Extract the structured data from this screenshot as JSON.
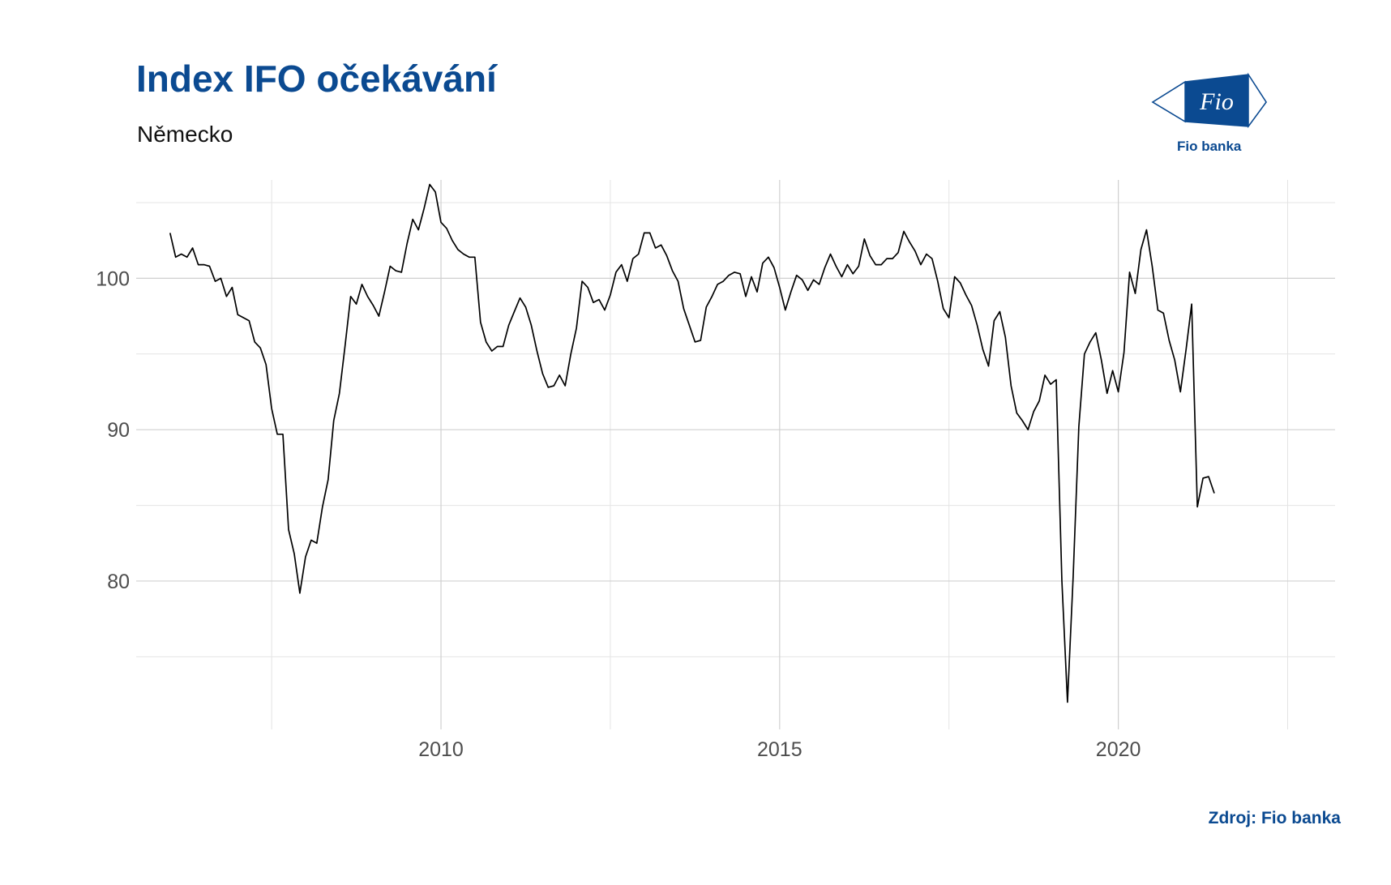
{
  "header": {
    "title": "Index IFO očekávání",
    "subtitle": "Německo"
  },
  "logo": {
    "mark_text": "Fio",
    "caption": "Fio banka",
    "color": "#0b4a91"
  },
  "footer": {
    "source": "Zdroj: Fio banka"
  },
  "chart_data": {
    "type": "line",
    "title": "Index IFO očekávání",
    "subtitle": "Německo",
    "xlabel": "",
    "ylabel": "",
    "x_ticks": [
      2010,
      2015,
      2020
    ],
    "y_ticks": [
      80,
      90,
      100
    ],
    "xlim": [
      2005.5,
      2023.2
    ],
    "ylim": [
      70.2,
      106.5
    ],
    "grid": true,
    "legend": "none",
    "line_color": "#000000",
    "series": [
      {
        "x_start": "2006-01",
        "frequency": "monthly",
        "values": [
          103.0,
          101.4,
          101.6,
          101.4,
          102.0,
          100.9,
          100.9,
          100.8,
          99.8,
          100.0,
          98.8,
          99.4,
          97.6,
          97.4,
          97.2,
          95.8,
          95.4,
          94.3,
          91.4,
          89.7,
          89.7,
          83.4,
          81.8,
          79.2,
          81.6,
          82.7,
          82.5,
          84.9,
          86.7,
          90.6,
          92.4,
          95.5,
          98.8,
          98.3,
          99.6,
          98.8,
          98.2,
          97.5,
          99.1,
          100.8,
          100.5,
          100.4,
          102.3,
          103.9,
          103.2,
          104.6,
          106.2,
          105.7,
          103.7,
          103.3,
          102.5,
          101.9,
          101.6,
          101.4,
          101.4,
          97.1,
          95.8,
          95.2,
          95.5,
          95.5,
          96.9,
          97.8,
          98.7,
          98.1,
          96.9,
          95.2,
          93.7,
          92.8,
          92.9,
          93.6,
          92.9,
          95.0,
          96.7,
          99.8,
          99.4,
          98.4,
          98.6,
          97.9,
          98.9,
          100.4,
          100.9,
          99.8,
          101.3,
          101.6,
          103.0,
          103.0,
          102.0,
          102.2,
          101.5,
          100.5,
          99.8,
          98.0,
          96.9,
          95.8,
          95.9,
          98.1,
          98.8,
          99.6,
          99.8,
          100.2,
          100.4,
          100.3,
          98.8,
          100.1,
          99.1,
          101.0,
          101.4,
          100.7,
          99.4,
          97.9,
          99.1,
          100.2,
          99.9,
          99.2,
          99.9,
          99.6,
          100.7,
          101.6,
          100.8,
          100.1,
          100.9,
          100.3,
          100.8,
          102.6,
          101.5,
          100.9,
          100.9,
          101.3,
          101.3,
          101.7,
          103.1,
          102.4,
          101.8,
          100.9,
          101.6,
          101.3,
          99.8,
          98.0,
          97.4,
          100.1,
          99.7,
          98.9,
          98.2,
          96.9,
          95.3,
          94.2,
          97.2,
          97.8,
          96.1,
          92.9,
          91.1,
          90.6,
          90.0,
          91.2,
          91.9,
          93.6,
          93.0,
          93.3,
          80.0,
          72.0,
          80.3,
          90.2,
          95.0,
          95.8,
          96.4,
          94.6,
          92.4,
          93.9,
          92.5,
          95.1,
          100.4,
          99.0,
          101.9,
          103.2,
          100.8,
          97.9,
          97.7,
          95.9,
          94.6,
          92.5,
          95.3,
          98.3,
          84.9,
          86.8,
          86.9,
          85.8
        ]
      }
    ]
  }
}
